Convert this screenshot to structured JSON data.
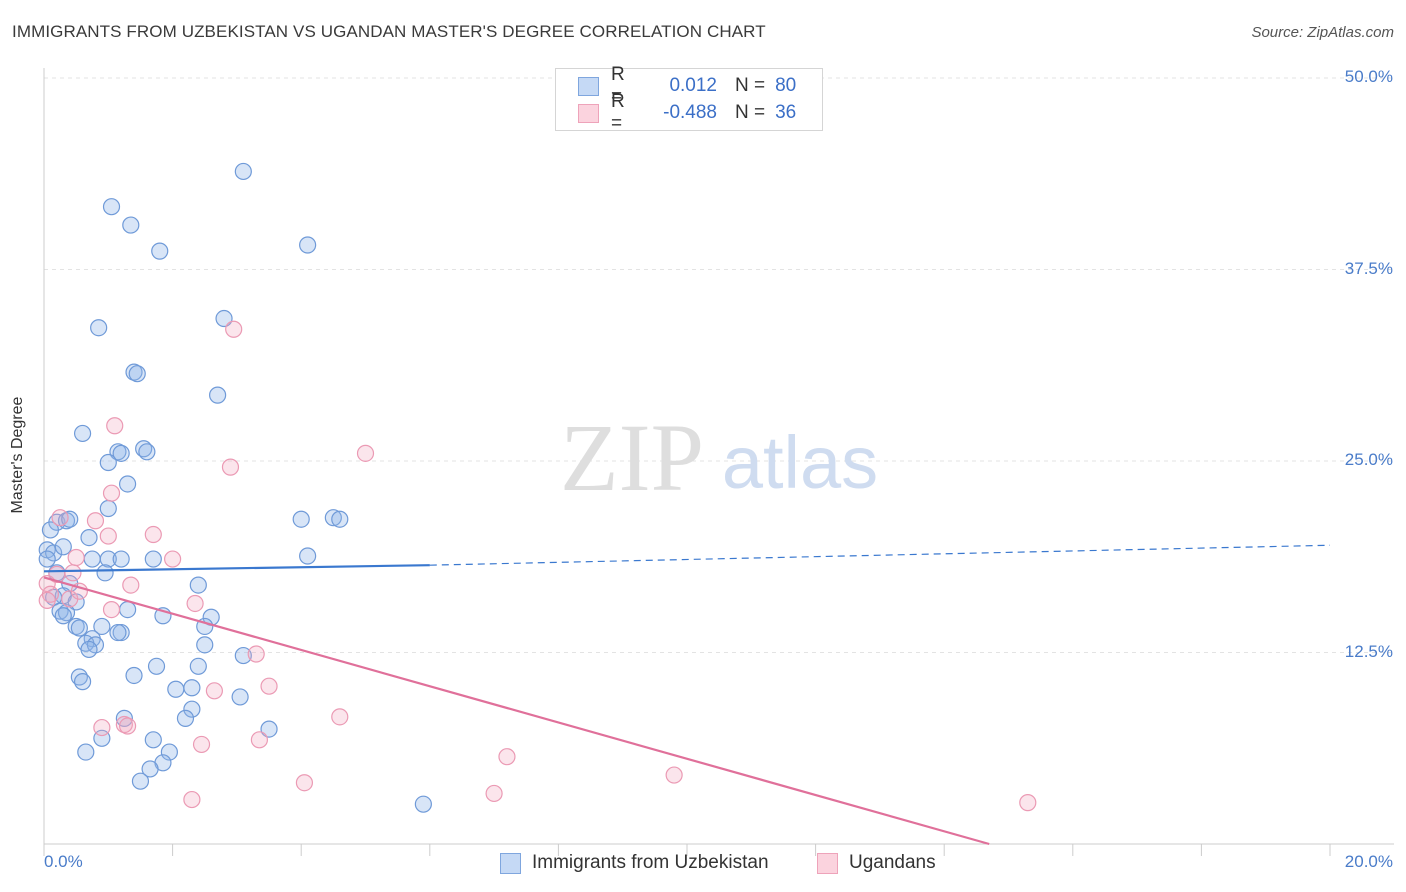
{
  "title": "IMMIGRANTS FROM UZBEKISTAN VS UGANDAN MASTER'S DEGREE CORRELATION CHART",
  "source": "Source: ZipAtlas.com",
  "watermark": {
    "zip": "ZIP",
    "atlas": "atlas"
  },
  "colors": {
    "blue": "#8fb4e8",
    "blue_line": "#3a78cf",
    "pink": "#f2a9bf",
    "pink_line": "#e0709a",
    "tick_text": "#4a7cc9"
  },
  "legend": {
    "r_label": "R =",
    "n_label": "N =",
    "rows": [
      {
        "name": "blue",
        "r": "0.012",
        "n": "80"
      },
      {
        "name": "pink",
        "r": "-0.488",
        "n": "36"
      }
    ]
  },
  "bottom_legend": [
    {
      "name": "blue",
      "label": "Immigrants from Uzbekistan"
    },
    {
      "name": "pink",
      "label": "Ugandans"
    }
  ],
  "chart_data": {
    "type": "scatter",
    "title": "IMMIGRANTS FROM UZBEKISTAN VS UGANDAN MASTER'S DEGREE CORRELATION CHART",
    "xlabel": "",
    "ylabel": "Master's Degree",
    "xlim": [
      0,
      20
    ],
    "ylim": [
      0,
      50
    ],
    "x_ticks": [
      "0.0%",
      "20.0%"
    ],
    "y_ticks": [
      {
        "value": 50,
        "label": "50.0%"
      },
      {
        "value": 37.5,
        "label": "37.5%"
      },
      {
        "value": 25,
        "label": "25.0%"
      },
      {
        "value": 12.5,
        "label": "12.5%"
      }
    ],
    "grid": true,
    "series": [
      {
        "name": "Immigrants from Uzbekistan",
        "color": "blue",
        "trend": {
          "x": [
            0,
            6,
            20
          ],
          "y": [
            17.8,
            18.2,
            19.5
          ],
          "solid_until": 6
        },
        "points": [
          [
            3.1,
            43.9
          ],
          [
            1.05,
            41.6
          ],
          [
            1.35,
            40.4
          ],
          [
            1.8,
            38.7
          ],
          [
            4.1,
            39.1
          ],
          [
            0.85,
            33.7
          ],
          [
            2.8,
            34.3
          ],
          [
            1.4,
            30.8
          ],
          [
            1.45,
            30.7
          ],
          [
            2.7,
            29.3
          ],
          [
            0.6,
            26.8
          ],
          [
            1.15,
            25.6
          ],
          [
            1.2,
            25.5
          ],
          [
            1.55,
            25.8
          ],
          [
            1.6,
            25.6
          ],
          [
            1.0,
            24.9
          ],
          [
            1.3,
            23.5
          ],
          [
            1.0,
            21.9
          ],
          [
            0.2,
            21.0
          ],
          [
            0.35,
            21.1
          ],
          [
            0.4,
            21.2
          ],
          [
            0.1,
            20.5
          ],
          [
            0.7,
            20.0
          ],
          [
            0.05,
            19.2
          ],
          [
            0.15,
            19.0
          ],
          [
            0.3,
            19.4
          ],
          [
            4.0,
            21.2
          ],
          [
            4.5,
            21.3
          ],
          [
            4.6,
            21.2
          ],
          [
            0.75,
            18.6
          ],
          [
            1.0,
            18.6
          ],
          [
            1.2,
            18.6
          ],
          [
            1.7,
            18.6
          ],
          [
            4.1,
            18.8
          ],
          [
            0.05,
            18.6
          ],
          [
            0.2,
            17.7
          ],
          [
            0.95,
            17.7
          ],
          [
            0.4,
            17.0
          ],
          [
            2.4,
            16.9
          ],
          [
            0.3,
            16.2
          ],
          [
            0.15,
            16.1
          ],
          [
            0.5,
            15.8
          ],
          [
            0.25,
            15.2
          ],
          [
            0.35,
            15.1
          ],
          [
            1.3,
            15.3
          ],
          [
            0.3,
            14.9
          ],
          [
            1.85,
            14.9
          ],
          [
            2.6,
            14.8
          ],
          [
            0.5,
            14.2
          ],
          [
            0.55,
            14.1
          ],
          [
            0.9,
            14.2
          ],
          [
            2.5,
            14.2
          ],
          [
            1.2,
            13.8
          ],
          [
            1.15,
            13.8
          ],
          [
            0.75,
            13.4
          ],
          [
            0.65,
            13.1
          ],
          [
            0.8,
            13.0
          ],
          [
            0.7,
            12.7
          ],
          [
            2.5,
            13.0
          ],
          [
            3.1,
            12.3
          ],
          [
            1.75,
            11.6
          ],
          [
            2.4,
            11.6
          ],
          [
            1.4,
            11.0
          ],
          [
            0.55,
            10.9
          ],
          [
            0.6,
            10.6
          ],
          [
            2.05,
            10.1
          ],
          [
            2.3,
            10.2
          ],
          [
            3.05,
            9.6
          ],
          [
            2.3,
            8.8
          ],
          [
            2.2,
            8.2
          ],
          [
            1.25,
            8.2
          ],
          [
            3.5,
            7.5
          ],
          [
            0.9,
            6.9
          ],
          [
            1.7,
            6.8
          ],
          [
            0.65,
            6.0
          ],
          [
            1.95,
            6.0
          ],
          [
            1.85,
            5.3
          ],
          [
            1.65,
            4.9
          ],
          [
            1.5,
            4.1
          ],
          [
            5.9,
            2.6
          ]
        ]
      },
      {
        "name": "Ugandans",
        "color": "pink",
        "trend": {
          "x": [
            0,
            14.7
          ],
          "y": [
            17.4,
            0
          ]
        },
        "points": [
          [
            2.95,
            33.6
          ],
          [
            1.1,
            27.3
          ],
          [
            5.0,
            25.5
          ],
          [
            2.9,
            24.6
          ],
          [
            1.05,
            22.9
          ],
          [
            0.8,
            21.1
          ],
          [
            1.7,
            20.2
          ],
          [
            1.0,
            20.1
          ],
          [
            0.5,
            18.7
          ],
          [
            2.0,
            18.6
          ],
          [
            0.2,
            17.6
          ],
          [
            0.45,
            17.7
          ],
          [
            0.05,
            17.0
          ],
          [
            1.35,
            16.9
          ],
          [
            0.1,
            16.3
          ],
          [
            0.4,
            16.0
          ],
          [
            0.55,
            16.5
          ],
          [
            0.05,
            15.9
          ],
          [
            1.05,
            15.3
          ],
          [
            2.35,
            15.7
          ],
          [
            3.3,
            12.4
          ],
          [
            3.5,
            10.3
          ],
          [
            2.65,
            10.0
          ],
          [
            4.6,
            8.3
          ],
          [
            0.9,
            7.6
          ],
          [
            1.25,
            7.8
          ],
          [
            1.3,
            7.7
          ],
          [
            2.45,
            6.5
          ],
          [
            3.35,
            6.8
          ],
          [
            7.2,
            5.7
          ],
          [
            9.8,
            4.5
          ],
          [
            4.05,
            4.0
          ],
          [
            2.3,
            2.9
          ],
          [
            7.0,
            3.3
          ],
          [
            15.3,
            2.7
          ],
          [
            0.25,
            21.3
          ]
        ]
      }
    ]
  }
}
